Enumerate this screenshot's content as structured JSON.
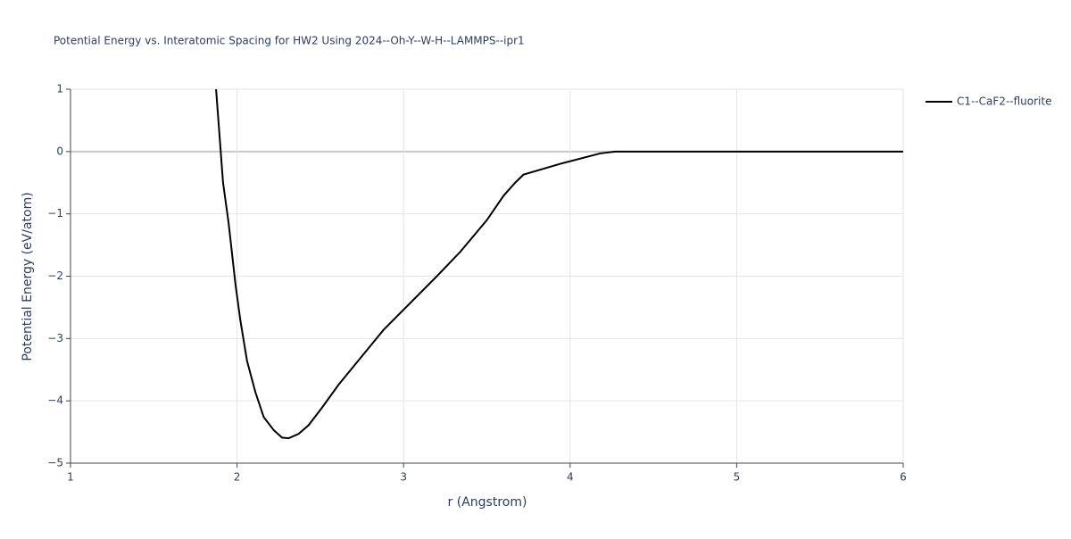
{
  "chart_data": {
    "type": "line",
    "title": "Potential Energy vs. Interatomic Spacing for HW2 Using 2024--Oh-Y--W-H--LAMMPS--ipr1",
    "x_label": "r (Angstrom)",
    "y_label": "Potential Energy (eV/atom)",
    "x": [
      1.874,
      1.916,
      1.949,
      1.991,
      2.02,
      2.06,
      2.11,
      2.16,
      2.22,
      2.27,
      2.31,
      2.37,
      2.43,
      2.51,
      2.61,
      2.88,
      3.2,
      3.34,
      3.5,
      3.6,
      3.67,
      3.72,
      3.95,
      4.18,
      4.27,
      6.0
    ],
    "series": [
      {
        "name": "C1--CaF2--fluorite",
        "color": "#000000",
        "values": [
          1,
          -0.5,
          -1.14,
          -2.14,
          -2.71,
          -3.36,
          -3.86,
          -4.26,
          -4.47,
          -4.59,
          -4.6,
          -4.53,
          -4.39,
          -4.11,
          -3.74,
          -2.86,
          -2.0,
          -1.61,
          -1.1,
          -0.71,
          -0.5,
          -0.37,
          -0.19,
          -0.03,
          0,
          0
        ]
      }
    ],
    "xlim": [
      1,
      6
    ],
    "xticks": [
      1,
      2,
      3,
      4,
      5,
      6
    ],
    "ylim": [
      -5,
      1
    ],
    "yticks": [
      {
        "value": -5,
        "label": "−5"
      },
      {
        "value": -4,
        "label": "−4"
      },
      {
        "value": -3,
        "label": "−3"
      },
      {
        "value": -2,
        "label": "−2"
      },
      {
        "value": -1,
        "label": "−1"
      },
      0,
      1
    ],
    "grid": true,
    "legend": "right"
  }
}
